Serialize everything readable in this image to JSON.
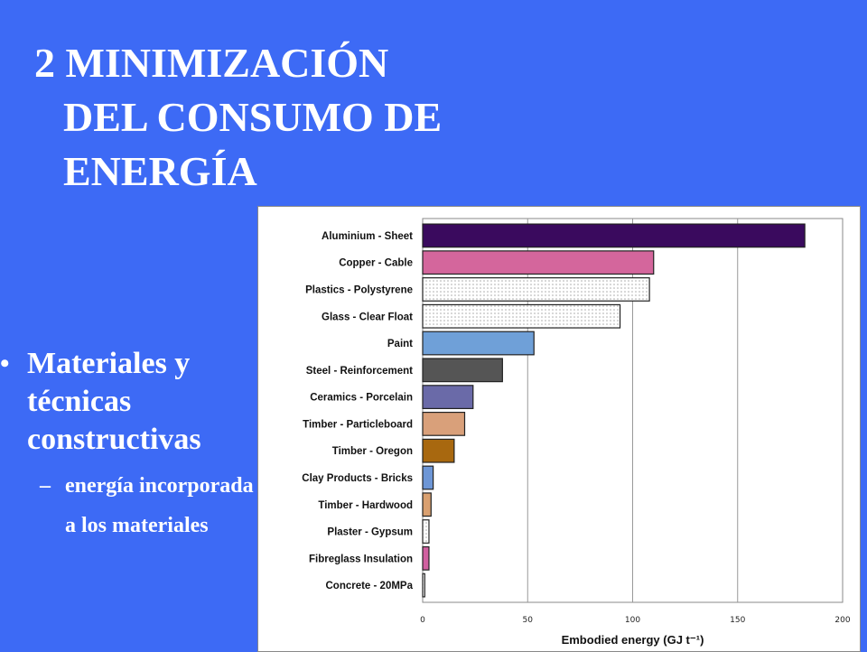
{
  "slide": {
    "title_lines": [
      "2 MINIMIZACIÓN",
      "DEL CONSUMO DE",
      "ENERGÍA"
    ],
    "bullet": "Materiales y técnicas constructivas",
    "sub_bullet": "energía incorporada a los materiales"
  },
  "chart_data": {
    "type": "bar",
    "orientation": "horizontal",
    "categories": [
      "Aluminium - Sheet",
      "Copper - Cable",
      "Plastics - Polystyrene",
      "Glass - Clear Float",
      "Paint",
      "Steel - Reinforcement",
      "Ceramics - Porcelain",
      "Timber - Particleboard",
      "Timber - Oregon",
      "Clay Products - Bricks",
      "Timber - Hardwood",
      "Plaster - Gypsum",
      "Fibreglass Insulation",
      "Concrete - 20MPa"
    ],
    "values": [
      182,
      110,
      108,
      94,
      53,
      38,
      24,
      20,
      15,
      5,
      4,
      3,
      3,
      1
    ],
    "bar_colors": [
      "#3a0a5e",
      "#d4669c",
      "#e2e2e2",
      "#dcdcdc",
      "#6fa0d8",
      "#555555",
      "#6a6aa8",
      "#d9a07a",
      "#a8680f",
      "#6d96d6",
      "#d9a070",
      "#f0f0f0",
      "#d060a0",
      "#f4f4f4"
    ],
    "xlabel": "Embodied energy (GJ t⁻¹)",
    "ylabel": "",
    "xlim": [
      0,
      200
    ],
    "xticks": [
      0,
      50,
      100,
      150,
      200
    ],
    "grid": true
  }
}
